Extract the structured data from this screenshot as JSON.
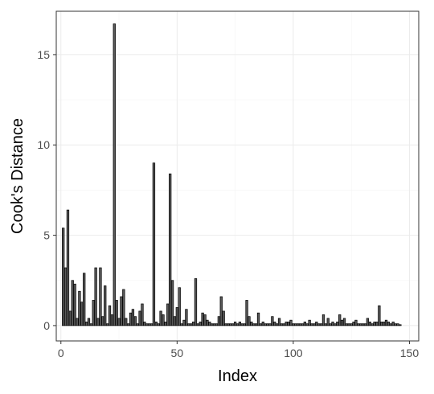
{
  "chart_data": {
    "type": "bar",
    "title": "",
    "xlabel": "Index",
    "ylabel": "Cook's Distance",
    "xlim": [
      -2,
      154
    ],
    "ylim": [
      -0.85,
      17.4
    ],
    "x_ticks": [
      0,
      50,
      100,
      150
    ],
    "y_ticks": [
      0,
      5,
      10,
      15
    ],
    "grid": true,
    "colors": {
      "bar_fill": "#595959",
      "bar_stroke": "#000000",
      "panel_border": "#333333",
      "grid": "#ebebeb"
    },
    "x": [
      1,
      2,
      3,
      4,
      5,
      6,
      7,
      8,
      9,
      10,
      11,
      12,
      13,
      14,
      15,
      16,
      17,
      18,
      19,
      20,
      21,
      22,
      23,
      24,
      25,
      26,
      27,
      28,
      29,
      30,
      31,
      32,
      33,
      34,
      35,
      36,
      37,
      38,
      39,
      40,
      41,
      42,
      43,
      44,
      45,
      46,
      47,
      48,
      49,
      50,
      51,
      52,
      53,
      54,
      55,
      56,
      57,
      58,
      59,
      60,
      61,
      62,
      63,
      64,
      65,
      66,
      67,
      68,
      69,
      70,
      71,
      72,
      73,
      74,
      75,
      76,
      77,
      78,
      79,
      80,
      81,
      82,
      83,
      84,
      85,
      86,
      87,
      88,
      89,
      90,
      91,
      92,
      93,
      94,
      95,
      96,
      97,
      98,
      99,
      100,
      101,
      102,
      103,
      104,
      105,
      106,
      107,
      108,
      109,
      110,
      111,
      112,
      113,
      114,
      115,
      116,
      117,
      118,
      119,
      120,
      121,
      122,
      123,
      124,
      125,
      126,
      127,
      128,
      129,
      130,
      131,
      132,
      133,
      134,
      135,
      136,
      137,
      138,
      139,
      140,
      141,
      142,
      143,
      144,
      145,
      146
    ],
    "values": [
      5.4,
      3.2,
      6.4,
      0.8,
      2.5,
      2.3,
      0.4,
      1.9,
      1.3,
      2.9,
      0.2,
      0.4,
      0.1,
      1.4,
      3.2,
      0.4,
      3.2,
      0.5,
      2.2,
      0.1,
      1.1,
      0.6,
      16.7,
      1.4,
      0.4,
      1.6,
      2.0,
      0.4,
      0.1,
      0.7,
      0.9,
      0.5,
      0.1,
      0.8,
      1.2,
      0.2,
      0.1,
      0.1,
      0.1,
      9.0,
      0.2,
      0.1,
      0.8,
      0.6,
      0.2,
      1.2,
      8.4,
      2.5,
      0.5,
      1.0,
      2.1,
      0.1,
      0.3,
      0.9,
      0.1,
      0.1,
      0.2,
      2.6,
      0.1,
      0.2,
      0.7,
      0.6,
      0.3,
      0.2,
      0.1,
      0.1,
      0.1,
      0.5,
      1.6,
      0.8,
      0.1,
      0.1,
      0.1,
      0.1,
      0.2,
      0.1,
      0.2,
      0.1,
      0.1,
      1.4,
      0.5,
      0.2,
      0.1,
      0.1,
      0.7,
      0.1,
      0.2,
      0.1,
      0.1,
      0.1,
      0.5,
      0.2,
      0.1,
      0.4,
      0.1,
      0.1,
      0.2,
      0.2,
      0.3,
      0.1,
      0.1,
      0.1,
      0.1,
      0.1,
      0.2,
      0.1,
      0.3,
      0.1,
      0.1,
      0.2,
      0.1,
      0.1,
      0.6,
      0.1,
      0.4,
      0.1,
      0.2,
      0.1,
      0.2,
      0.6,
      0.3,
      0.4,
      0.1,
      0.1,
      0.1,
      0.2,
      0.3,
      0.1,
      0.1,
      0.1,
      0.1,
      0.4,
      0.2,
      0.1,
      0.2,
      0.2,
      1.1,
      0.2,
      0.2,
      0.3,
      0.2,
      0.1,
      0.2,
      0.1,
      0.1,
      0.05
    ]
  }
}
